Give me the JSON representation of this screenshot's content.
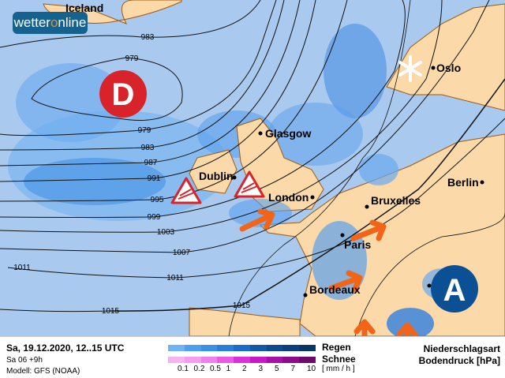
{
  "brand": {
    "logo_text_a": "wetter",
    "logo_text_o": "o",
    "logo_text_b": "nline"
  },
  "colors": {
    "sea": "#a9c9ee",
    "land": "#fbd9a8",
    "border": "#a05a10",
    "rain_light": "#6eb0f2",
    "rain_mid": "#2f80e0",
    "rain_dark": "#0f4fa8",
    "wind_arrow": "#f26418",
    "low_marker": "#d9232a",
    "high_marker": "#0b4f94"
  },
  "map": {
    "cities": [
      {
        "name": "Iceland"
      },
      {
        "name": "Glasgow"
      },
      {
        "name": "Dublin"
      },
      {
        "name": "London"
      },
      {
        "name": "Bruxelles"
      },
      {
        "name": "Paris"
      },
      {
        "name": "Bordeaux"
      },
      {
        "name": "Berlin"
      },
      {
        "name": "Oslo"
      }
    ],
    "isobar_labels": [
      "983",
      "979",
      "979",
      "983",
      "987",
      "991",
      "995",
      "999",
      "1003",
      "1007",
      "1011",
      "1011",
      "1015",
      "1015"
    ],
    "low_pressure_label": "D",
    "high_pressure_label": "A",
    "icons": [
      "storm-warning-icon",
      "storm-warning-icon",
      "snow-icon",
      "wind-arrow-icon"
    ]
  },
  "legend": {
    "datetime": "Sa, 19.12.2020, 12..15 UTC",
    "run": "Sa 06 +9h",
    "model": "Modell: GFS (NOAA)",
    "rain_label": "Regen",
    "snow_label": "Schnee",
    "unit": "[ mm / h ]",
    "ticks": [
      "0.1",
      "0.2",
      "0.5",
      "1",
      "2",
      "3",
      "5",
      "7",
      "10"
    ],
    "rain_colors": [
      "#6eb4f6",
      "#4e9ff0",
      "#3a90e8",
      "#2a7fdc",
      "#1c6ccc",
      "#1458aa",
      "#0e4a94",
      "#0b3f80",
      "#0a3568"
    ],
    "snow_colors": [
      "#f4b4f0",
      "#f49cf0",
      "#f080ee",
      "#ea5ae6",
      "#dc30dc",
      "#c818c8",
      "#a810a8",
      "#8c0c8c",
      "#6e0a6e"
    ],
    "title1": "Niederschlagsart",
    "title2": "Bodendruck [hPa]"
  }
}
